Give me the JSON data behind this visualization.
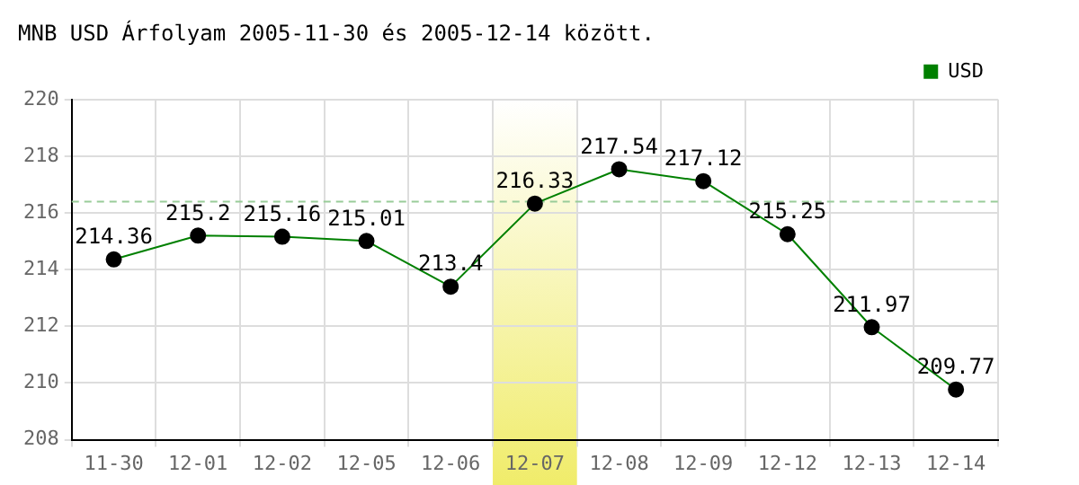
{
  "chart_data": {
    "type": "line",
    "title": "MNB USD Árfolyam 2005-11-30 és 2005-12-14 között.",
    "categories": [
      "11-30",
      "12-01",
      "12-02",
      "12-05",
      "12-06",
      "12-07",
      "12-08",
      "12-09",
      "12-12",
      "12-13",
      "12-14"
    ],
    "series": [
      {
        "name": "USD",
        "color": "#008000",
        "values": [
          214.36,
          215.2,
          215.16,
          215.01,
          213.4,
          216.33,
          217.54,
          217.12,
          215.25,
          211.97,
          209.77
        ]
      }
    ],
    "ylim": [
      208,
      220
    ],
    "yticks": [
      208,
      210,
      212,
      214,
      216,
      218,
      220
    ],
    "ref_lines": [
      {
        "axis": "y",
        "value": 216.4,
        "color": "#99cc99",
        "line_style": "dashed"
      }
    ],
    "bands": [
      {
        "axis": "x",
        "from": "12-07",
        "to": "12-07",
        "color": "#f0ec6a"
      }
    ],
    "grid": true,
    "legend": "top right",
    "marker": "circle",
    "data_labels": true
  }
}
